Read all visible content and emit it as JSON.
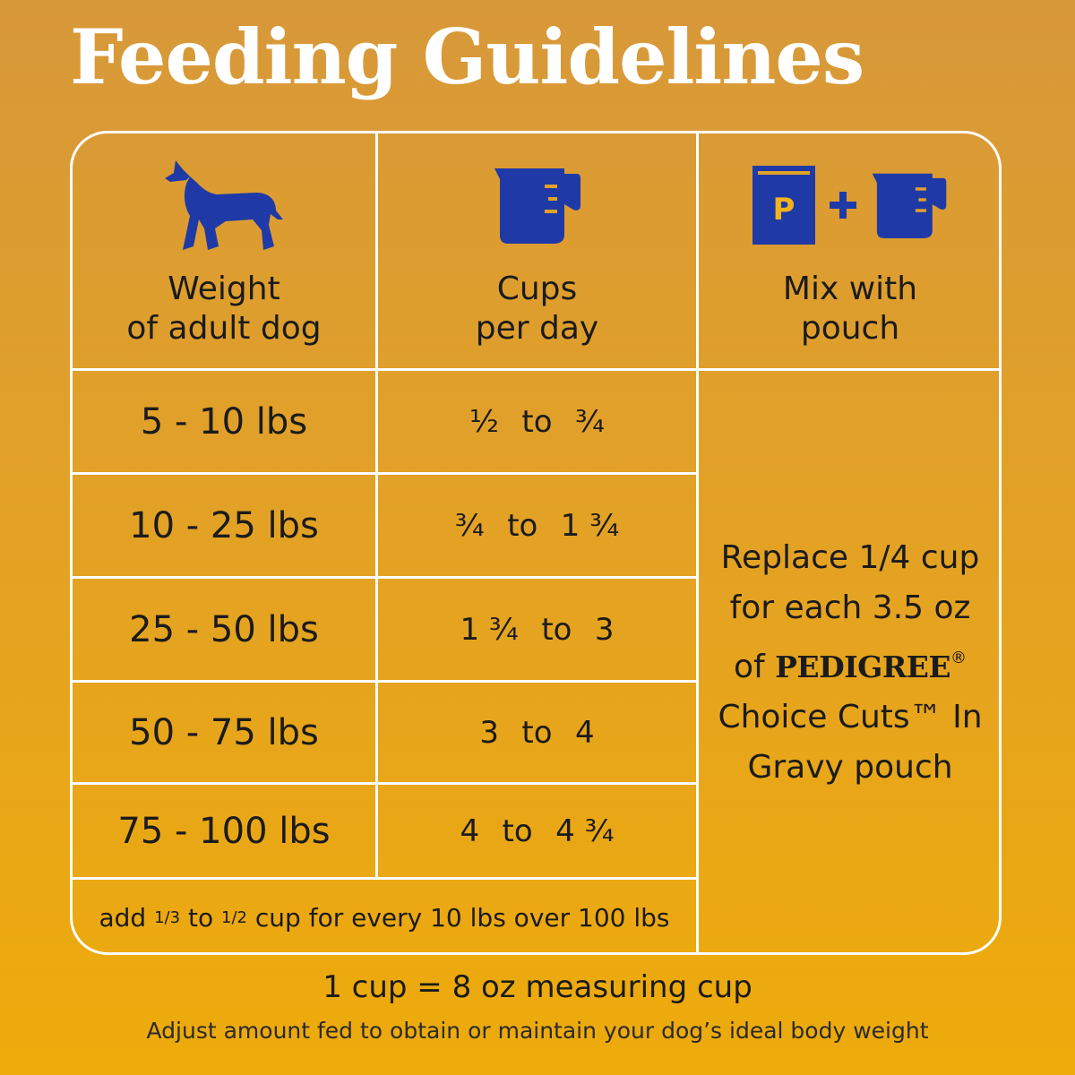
{
  "title": "Feeding Guidelines",
  "headers": {
    "weight_line1": "Weight",
    "weight_line2": "of adult dog",
    "cups_line1": "Cups",
    "cups_line2": "per day",
    "mix_line1": "Mix with",
    "mix_line2": "pouch"
  },
  "icons": {
    "dog": "dog-icon",
    "cup": "measuring-cup-icon",
    "pouch": "pouch-icon",
    "plus": "plus-icon",
    "pouch_letter": "P",
    "icon_color": "#1f3aa6",
    "letter_color": "#f2b21b"
  },
  "rows": [
    {
      "weight": "5 - 10 lbs",
      "cups_a": "½",
      "cups_to": "to",
      "cups_b": "¾"
    },
    {
      "weight": "10 - 25 lbs",
      "cups_a": "¾",
      "cups_to": "to",
      "cups_b": "1 ¾"
    },
    {
      "weight": "25 - 50 lbs",
      "cups_a": "1 ¾",
      "cups_to": "to",
      "cups_b": "3"
    },
    {
      "weight": "50 - 75 lbs",
      "cups_a": "3",
      "cups_to": "to",
      "cups_b": "4"
    },
    {
      "weight": "75 - 100 lbs",
      "cups_a": "4",
      "cups_to": "to",
      "cups_b": "4 ¾"
    }
  ],
  "note": {
    "prefix": "add",
    "frac1_num": "1",
    "frac1_den": "/3",
    "mid": "to",
    "frac2_num": "1",
    "frac2_den": "/2",
    "suffix": "cup for every 10 lbs over 100 lbs"
  },
  "mix": {
    "line1": "Replace 1/4 cup",
    "line2": "for each 3.5 oz",
    "line3_prefix": "of",
    "brand": "PEDIGREE",
    "registered": "®",
    "line4": "Choice Cuts™ In",
    "line5": "Gravy pouch"
  },
  "footer": {
    "line1": "1 cup = 8 oz measuring cup",
    "line2": "Adjust amount fed to obtain or maintain your dog’s ideal body weight"
  }
}
